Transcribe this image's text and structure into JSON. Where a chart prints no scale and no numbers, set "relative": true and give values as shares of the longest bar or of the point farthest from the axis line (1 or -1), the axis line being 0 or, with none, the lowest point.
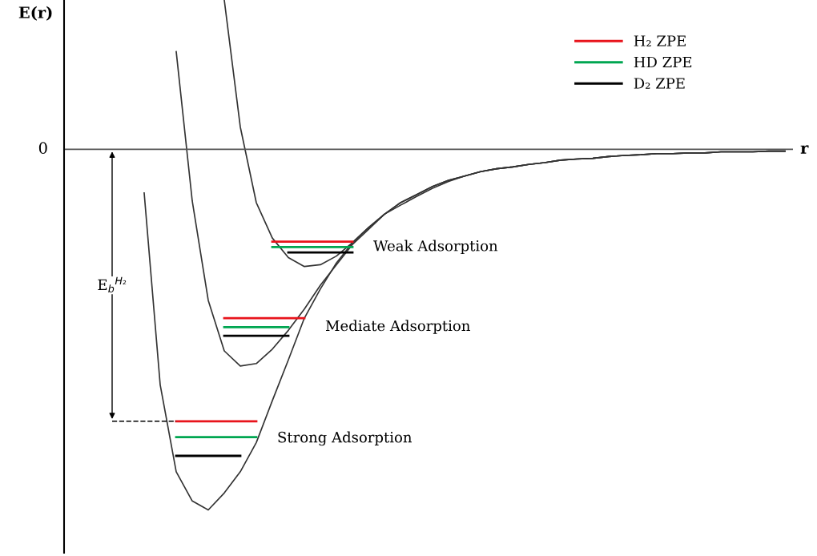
{
  "chart_data": {
    "type": "line",
    "relative": true,
    "xlabel": "r",
    "ylabel": "E(r)",
    "legend": "top right",
    "grid": false,
    "marker": "none",
    "categories": [
      null,
      null,
      null,
      null,
      null,
      null,
      null,
      null,
      null,
      null,
      null,
      null,
      null,
      null,
      null,
      null,
      null,
      null,
      null,
      null,
      null,
      null,
      null,
      null,
      null,
      null,
      null,
      null,
      null,
      null,
      null,
      null,
      null,
      null,
      null,
      null,
      null,
      null,
      null,
      null,
      null,
      null,
      null,
      null,
      null,
      null
    ],
    "ref_lines": [
      {
        "axis": "y",
        "value": 0,
        "label": "0",
        "color": "#555555"
      }
    ],
    "series": [
      {
        "color": "#333333",
        "values": [
          null,
          null,
          null,
          null,
          null,
          -0.121,
          -0.653,
          -0.894,
          -0.975,
          -1,
          -0.953,
          -0.894,
          -0.813,
          -0.697,
          -0.584,
          -0.468,
          -0.387,
          -0.315,
          -0.259,
          -0.217,
          -0.18,
          -0.148,
          -0.126,
          -0.103,
          -0.086,
          -0.074,
          -0.062,
          -0.054,
          -0.049,
          -0.042,
          -0.037,
          -0.03,
          -0.027,
          -0.025,
          -0.02,
          -0.017,
          -0.015,
          -0.012,
          -0.012,
          -0.01,
          -0.01,
          -0.007,
          -0.007,
          -0.007,
          -0.005,
          -0.005
        ]
      },
      {
        "color": "#333333",
        "values": [
          null,
          null,
          null,
          null,
          null,
          null,
          null,
          0.271,
          -0.143,
          -0.419,
          -0.559,
          -0.601,
          -0.594,
          -0.554,
          -0.502,
          -0.443,
          -0.377,
          -0.32,
          -0.264,
          -0.222,
          -0.18,
          -0.148,
          -0.126,
          -0.103,
          -0.086,
          -0.074,
          -0.062,
          -0.054,
          -0.049,
          -0.042,
          -0.037,
          -0.03,
          -0.027,
          -0.025,
          -0.02,
          -0.017,
          -0.015,
          -0.012,
          -0.012,
          -0.01,
          -0.01,
          -0.007,
          -0.007,
          -0.007,
          -0.005,
          -0.005
        ]
      },
      {
        "color": "#333333",
        "values": [
          null,
          null,
          null,
          null,
          null,
          null,
          null,
          null,
          null,
          null,
          0.414,
          0.062,
          -0.148,
          -0.246,
          -0.3,
          -0.325,
          -0.32,
          -0.296,
          -0.259,
          -0.217,
          -0.18,
          -0.155,
          -0.131,
          -0.108,
          -0.089,
          -0.074,
          -0.062,
          -0.054,
          -0.049,
          -0.042,
          -0.037,
          -0.03,
          -0.027,
          -0.025,
          -0.02,
          -0.017,
          -0.015,
          -0.012,
          -0.012,
          -0.01,
          -0.01,
          -0.007,
          -0.007,
          -0.007,
          -0.005,
          -0.005
        ]
      },
      {
        "name": "H₂ ZPE",
        "color": "#e8141c",
        "values": [
          null,
          null,
          null,
          null,
          null,
          null,
          null,
          -0.754,
          -0.754,
          -0.754,
          -0.754,
          -0.754,
          -0.754,
          null,
          null,
          null,
          null,
          null,
          null,
          null,
          null,
          null,
          null,
          null,
          null,
          null,
          null,
          null,
          null,
          null,
          null,
          null,
          null,
          null,
          null,
          null,
          null,
          null,
          null,
          null,
          null,
          null,
          null,
          null,
          null,
          null
        ]
      },
      {
        "color": "#e8141c",
        "values": [
          null,
          null,
          null,
          null,
          null,
          null,
          null,
          null,
          null,
          null,
          -0.468,
          -0.468,
          -0.468,
          -0.468,
          -0.468,
          -0.468,
          null,
          null,
          null,
          null,
          null,
          null,
          null,
          null,
          null,
          null,
          null,
          null,
          null,
          null,
          null,
          null,
          null,
          null,
          null,
          null,
          null,
          null,
          null,
          null,
          null,
          null,
          null,
          null,
          null,
          null
        ]
      },
      {
        "color": "#e8141c",
        "values": [
          null,
          null,
          null,
          null,
          null,
          null,
          null,
          null,
          null,
          null,
          null,
          null,
          null,
          -0.256,
          -0.256,
          -0.256,
          -0.256,
          -0.256,
          -0.256,
          null,
          null,
          null,
          null,
          null,
          null,
          null,
          null,
          null,
          null,
          null,
          null,
          null,
          null,
          null,
          null,
          null,
          null,
          null,
          null,
          null,
          null,
          null,
          null,
          null,
          null,
          null
        ]
      },
      {
        "name": "HD ZPE",
        "color": "#00a651",
        "values": [
          null,
          null,
          null,
          null,
          null,
          null,
          null,
          -0.798,
          -0.798,
          -0.798,
          -0.798,
          -0.798,
          -0.798,
          null,
          null,
          null,
          null,
          null,
          null,
          null,
          null,
          null,
          null,
          null,
          null,
          null,
          null,
          null,
          null,
          null,
          null,
          null,
          null,
          null,
          null,
          null,
          null,
          null,
          null,
          null,
          null,
          null,
          null,
          null,
          null,
          null
        ]
      },
      {
        "color": "#00a651",
        "values": [
          null,
          null,
          null,
          null,
          null,
          null,
          null,
          null,
          null,
          null,
          -0.493,
          -0.493,
          -0.493,
          -0.493,
          -0.493,
          null,
          null,
          null,
          null,
          null,
          null,
          null,
          null,
          null,
          null,
          null,
          null,
          null,
          null,
          null,
          null,
          null,
          null,
          null,
          null,
          null,
          null,
          null,
          null,
          null,
          null,
          null,
          null,
          null,
          null,
          null
        ]
      },
      {
        "color": "#00a651",
        "values": [
          null,
          null,
          null,
          null,
          null,
          null,
          null,
          null,
          null,
          null,
          null,
          null,
          null,
          -0.271,
          -0.271,
          -0.271,
          -0.271,
          -0.271,
          -0.271,
          null,
          null,
          null,
          null,
          null,
          null,
          null,
          null,
          null,
          null,
          null,
          null,
          null,
          null,
          null,
          null,
          null,
          null,
          null,
          null,
          null,
          null,
          null,
          null,
          null,
          null,
          null
        ]
      },
      {
        "name": "D₂ ZPE",
        "color": "#000000",
        "values": [
          null,
          null,
          null,
          null,
          null,
          null,
          null,
          -0.85,
          -0.85,
          -0.85,
          -0.85,
          -0.85,
          null,
          null,
          null,
          null,
          null,
          null,
          null,
          null,
          null,
          null,
          null,
          null,
          null,
          null,
          null,
          null,
          null,
          null,
          null,
          null,
          null,
          null,
          null,
          null,
          null,
          null,
          null,
          null,
          null,
          null,
          null,
          null,
          null,
          null
        ]
      },
      {
        "color": "#000000",
        "values": [
          null,
          null,
          null,
          null,
          null,
          null,
          null,
          null,
          null,
          null,
          -0.517,
          -0.517,
          -0.517,
          -0.517,
          -0.517,
          null,
          null,
          null,
          null,
          null,
          null,
          null,
          null,
          null,
          null,
          null,
          null,
          null,
          null,
          null,
          null,
          null,
          null,
          null,
          null,
          null,
          null,
          null,
          null,
          null,
          null,
          null,
          null,
          null,
          null,
          null
        ]
      },
      {
        "color": "#000000",
        "values": [
          null,
          null,
          null,
          null,
          null,
          null,
          null,
          null,
          null,
          null,
          null,
          null,
          null,
          null,
          -0.286,
          -0.286,
          -0.286,
          -0.286,
          -0.286,
          null,
          null,
          null,
          null,
          null,
          null,
          null,
          null,
          null,
          null,
          null,
          null,
          null,
          null,
          null,
          null,
          null,
          null,
          null,
          null,
          null,
          null,
          null,
          null,
          null,
          null,
          null
        ]
      },
      {
        "color": "#000000",
        "line_style": "dashed",
        "values": [
          null,
          null,
          null,
          -0.754,
          -0.754,
          -0.754,
          -0.754,
          -0.754,
          null,
          null,
          null,
          null,
          null,
          null,
          null,
          null,
          null,
          null,
          null,
          null,
          null,
          null,
          null,
          null,
          null,
          null,
          null,
          null,
          null,
          null,
          null,
          null,
          null,
          null,
          null,
          null,
          null,
          null,
          null,
          null,
          null,
          null,
          null,
          null,
          null,
          null
        ]
      }
    ],
    "annotations": [
      "Weak Adsorption",
      "Mediate Adsorption",
      "Strong Adsorption",
      "E$_{b}$$^{H₂}$"
    ]
  }
}
